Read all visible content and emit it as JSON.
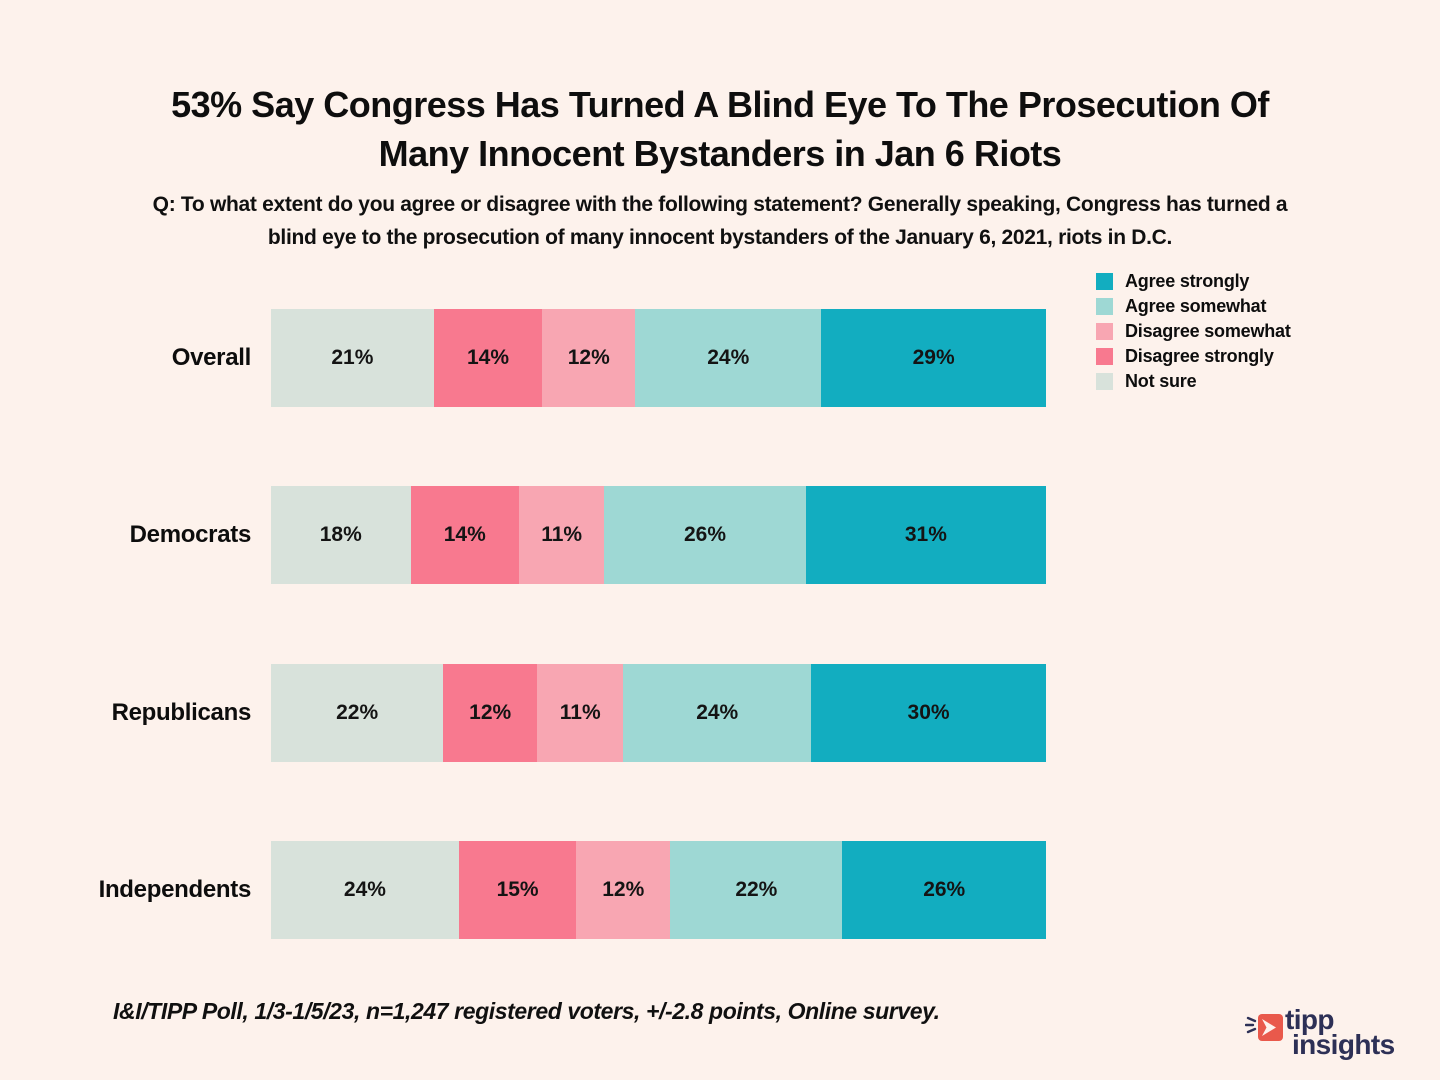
{
  "page": {
    "background": "#fdf2ec"
  },
  "title": {
    "line1": "53% Say Congress Has Turned A Blind Eye To The Prosecution Of",
    "line2": "Many Innocent Bystanders in Jan 6 Riots"
  },
  "question": {
    "line1": "Q: To what extent do you agree or disagree with the following statement? Generally speaking, Congress has turned a",
    "line2": "blind eye to the prosecution of many innocent bystanders of the January 6, 2021, riots in D.C."
  },
  "legend": [
    {
      "label": "Agree strongly",
      "color": "#12adc0"
    },
    {
      "label": "Agree somewhat",
      "color": "#9ed8d4"
    },
    {
      "label": "Disagree somewhat",
      "color": "#f8a6b2"
    },
    {
      "label": "Disagree strongly",
      "color": "#f8798f"
    },
    {
      "label": "Not sure",
      "color": "#d8e2db"
    }
  ],
  "chart_data": {
    "type": "bar",
    "orientation": "horizontal-stacked",
    "categories": [
      "Overall",
      "Democrats",
      "Republicans",
      "Independents"
    ],
    "series": [
      {
        "name": "Not sure",
        "color": "#d8e2db",
        "values": [
          21,
          18,
          22,
          24
        ]
      },
      {
        "name": "Disagree strongly",
        "color": "#f8798f",
        "values": [
          14,
          14,
          12,
          15
        ]
      },
      {
        "name": "Disagree somewhat",
        "color": "#f8a6b2",
        "values": [
          12,
          11,
          11,
          12
        ]
      },
      {
        "name": "Agree somewhat",
        "color": "#9ed8d4",
        "values": [
          24,
          26,
          24,
          22
        ]
      },
      {
        "name": "Agree strongly",
        "color": "#12adc0",
        "values": [
          29,
          31,
          30,
          26
        ]
      }
    ],
    "value_suffix": "%",
    "title": "53% Say Congress Has Turned A Blind Eye To The Prosecution Of Many Innocent Bystanders in Jan 6 Riots",
    "xlabel": "",
    "ylabel": "",
    "xlim": [
      0,
      100
    ],
    "grid": false,
    "legend_position": "top-right",
    "value_labels": "inside-center"
  },
  "footer": {
    "source": "I&I/TIPP Poll, 1/3-1/5/23, n=1,247 registered voters, +/-2.8 points, Online survey."
  },
  "logo": {
    "line1": "tipp",
    "line2": "insights",
    "text_color": "#2d3056",
    "mark_color": "#e9594b"
  }
}
